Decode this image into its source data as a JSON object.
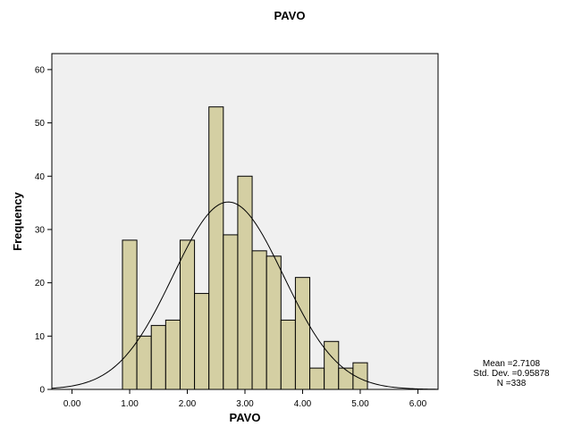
{
  "chart_data": {
    "type": "bar",
    "title": "PAVO",
    "xlabel": "PAVO",
    "ylabel": "Frequency",
    "xlim": [
      -0.35,
      6.35
    ],
    "ylim": [
      0,
      63
    ],
    "grid": false,
    "x_ticks": [
      0,
      1,
      2,
      3,
      4,
      5,
      6
    ],
    "x_tick_labels": [
      "0.00",
      "1.00",
      "2.00",
      "3.00",
      "4.00",
      "5.00",
      "6.00"
    ],
    "y_ticks": [
      0,
      10,
      20,
      30,
      40,
      50,
      60
    ],
    "y_tick_labels": [
      "0",
      "10",
      "20",
      "30",
      "40",
      "50",
      "60"
    ],
    "bin_width": 0.25,
    "bins": [
      {
        "start": 0.875,
        "count": 28
      },
      {
        "start": 1.125,
        "count": 10
      },
      {
        "start": 1.375,
        "count": 12
      },
      {
        "start": 1.625,
        "count": 13
      },
      {
        "start": 1.875,
        "count": 28
      },
      {
        "start": 2.125,
        "count": 18
      },
      {
        "start": 2.375,
        "count": 53
      },
      {
        "start": 2.625,
        "count": 29
      },
      {
        "start": 2.875,
        "count": 40
      },
      {
        "start": 3.125,
        "count": 26
      },
      {
        "start": 3.375,
        "count": 25
      },
      {
        "start": 3.625,
        "count": 13
      },
      {
        "start": 3.875,
        "count": 21
      },
      {
        "start": 4.125,
        "count": 4
      },
      {
        "start": 4.375,
        "count": 9
      },
      {
        "start": 4.625,
        "count": 4
      },
      {
        "start": 4.875,
        "count": 5
      }
    ],
    "normal_curve": {
      "mean": 2.7108,
      "std": 0.95878,
      "n": 338
    },
    "stats_text": [
      "Mean =2.7108",
      "Std. Dev. =0.95878",
      "N =338"
    ],
    "colors": {
      "bar_fill": "#d4cfa3",
      "bar_stroke": "#000000",
      "plot_background": "#f0f0f0",
      "curve": "#000000"
    }
  }
}
